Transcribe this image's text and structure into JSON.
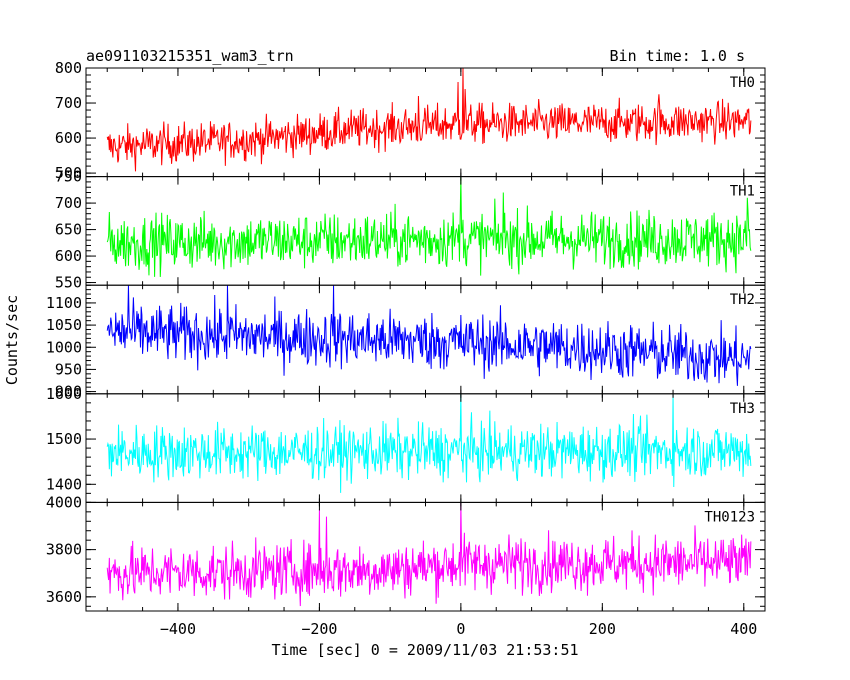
{
  "header": {
    "left": "ae091103215351_wam3_trn",
    "right": "Bin time: 1.0 s"
  },
  "chart_data": {
    "type": "line",
    "xlabel": "Time [sec] 0 = 2009/11/03 21:53:51",
    "ylabel": "Counts/sec",
    "xlim": [
      -530,
      430
    ],
    "x_range_data": [
      -500,
      410
    ],
    "x_ticks": [
      -400,
      -200,
      0,
      200,
      400
    ],
    "x_tick_labels": [
      "−400",
      "−200",
      "0",
      "200",
      "400"
    ],
    "grid": false,
    "panels": [
      {
        "name": "TH0",
        "color": "#ff0000",
        "ylim": [
          490,
          800
        ],
        "y_ticks": [
          500,
          600,
          700,
          800
        ],
        "y_tick_labels": [
          "500",
          "600",
          "700",
          "800"
        ],
        "baseline": [
          [
            -500,
            575
          ],
          [
            -300,
            595
          ],
          [
            -150,
            625
          ],
          [
            -50,
            635
          ],
          [
            0,
            640
          ],
          [
            410,
            648
          ]
        ],
        "noise": 28,
        "spikes": [
          [
            3,
            800
          ],
          [
            -4,
            760
          ],
          [
            6,
            740
          ],
          [
            -60,
            720
          ],
          [
            280,
            725
          ]
        ]
      },
      {
        "name": "TH1",
        "color": "#00ff00",
        "ylim": [
          545,
          750
        ],
        "y_ticks": [
          550,
          600,
          650,
          700,
          750
        ],
        "y_tick_labels": [
          "550",
          "600",
          "650",
          "700",
          "750"
        ],
        "baseline": [
          [
            -500,
            625
          ],
          [
            0,
            632
          ],
          [
            410,
            632
          ]
        ],
        "noise": 26,
        "spikes": [
          [
            0,
            750
          ],
          [
            60,
            720
          ],
          [
            405,
            710
          ]
        ]
      },
      {
        "name": "TH2",
        "color": "#0000ff",
        "ylim": [
          895,
          1140
        ],
        "y_ticks": [
          900,
          950,
          1000,
          1050,
          1100
        ],
        "y_tick_labels": [
          "900",
          "950",
          "1000",
          "1050",
          "1100"
        ],
        "baseline": [
          [
            -500,
            1035
          ],
          [
            -300,
            1025
          ],
          [
            0,
            1012
          ],
          [
            200,
            995
          ],
          [
            410,
            972
          ]
        ],
        "noise": 32,
        "spikes": [
          [
            -470,
            1140
          ],
          [
            -330,
            1140
          ],
          [
            -180,
            1140
          ]
        ]
      },
      {
        "name": "TH3",
        "color": "#00ffff",
        "ylim": [
          1360,
          1600
        ],
        "y_ticks": [
          1400,
          1500,
          1600
        ],
        "y_tick_labels": [
          "1400",
          "1500",
          "1600"
        ],
        "baseline": [
          [
            -500,
            1470
          ],
          [
            410,
            1475
          ]
        ],
        "noise": 30,
        "spikes": [
          [
            0,
            1600
          ],
          [
            300,
            1600
          ]
        ]
      },
      {
        "name": "TH0123",
        "color": "#ff00ff",
        "ylim": [
          3540,
          4000
        ],
        "y_ticks": [
          3600,
          3800,
          4000
        ],
        "y_tick_labels": [
          "3600",
          "3800",
          "4000"
        ],
        "baseline": [
          [
            -500,
            3700
          ],
          [
            -100,
            3715
          ],
          [
            0,
            3740
          ],
          [
            410,
            3745
          ]
        ],
        "noise": 58,
        "spikes": [
          [
            0,
            4000
          ],
          [
            -200,
            3970
          ],
          [
            -190,
            3940
          ]
        ]
      }
    ]
  }
}
